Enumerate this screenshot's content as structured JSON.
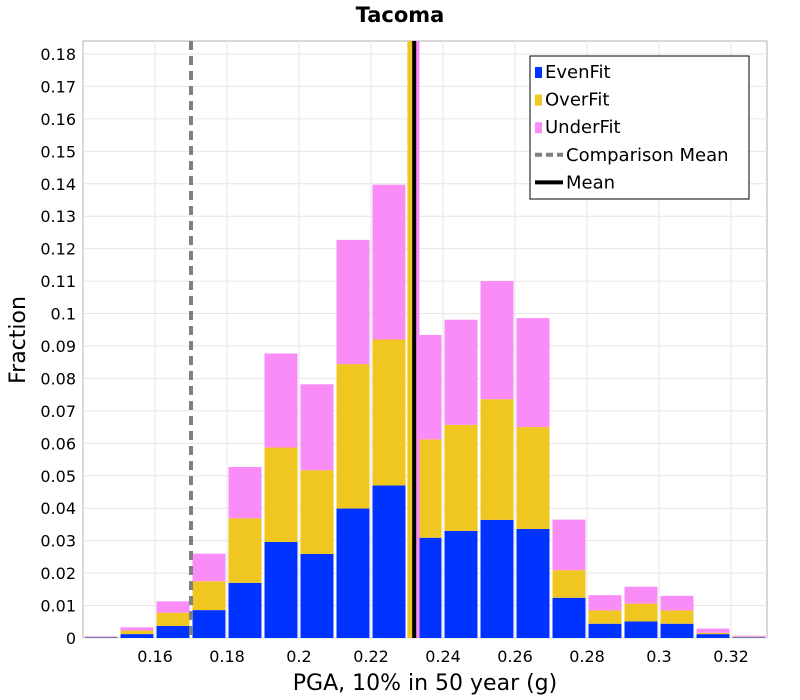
{
  "chart_data": {
    "type": "bar",
    "stacked": true,
    "title": "Tacoma",
    "xlabel": "PGA, 10% in 50 year (g)",
    "ylabel": "Fraction",
    "xlim": [
      0.14,
      0.33
    ],
    "ylim": [
      0,
      0.184
    ],
    "bin_width": 0.01,
    "x_ticks": [
      "0.16",
      "0.18",
      "0.2",
      "0.22",
      "0.24",
      "0.26",
      "0.28",
      "0.3",
      "0.32"
    ],
    "y_ticks": [
      "0",
      "0.01",
      "0.02",
      "0.03",
      "0.04",
      "0.05",
      "0.06",
      "0.07",
      "0.08",
      "0.09",
      "0.1",
      "0.11",
      "0.12",
      "0.13",
      "0.14",
      "0.15",
      "0.16",
      "0.17",
      "0.18"
    ],
    "bin_starts": [
      0.14,
      0.15,
      0.16,
      0.17,
      0.18,
      0.19,
      0.2,
      0.21,
      0.22,
      0.23,
      0.24,
      0.25,
      0.26,
      0.27,
      0.28,
      0.29,
      0.3,
      0.31,
      0.32
    ],
    "series": [
      {
        "name": "EvenFit",
        "color": "#0033ff",
        "values": [
          0.0002,
          0.0012,
          0.0037,
          0.0086,
          0.017,
          0.0296,
          0.0259,
          0.0399,
          0.047,
          0.0309,
          0.033,
          0.0364,
          0.0336,
          0.0124,
          0.0044,
          0.0051,
          0.0044,
          0.0012,
          0.0002
        ]
      },
      {
        "name": "OverFit",
        "color": "#f0c620",
        "values": [
          0.0002,
          0.0011,
          0.0041,
          0.0089,
          0.0199,
          0.0291,
          0.0258,
          0.0445,
          0.045,
          0.0303,
          0.0327,
          0.0372,
          0.0314,
          0.0085,
          0.0041,
          0.0055,
          0.0041,
          0.0004,
          0.0002
        ]
      },
      {
        "name": "UnderFit",
        "color": "#fa8cf8",
        "values": [
          0.0001,
          0.001,
          0.0035,
          0.0085,
          0.0158,
          0.029,
          0.0265,
          0.0383,
          0.0477,
          0.0322,
          0.0324,
          0.0364,
          0.0336,
          0.0156,
          0.0047,
          0.0052,
          0.0045,
          0.0013,
          0.0003
        ]
      }
    ],
    "reference_lines": [
      {
        "name": "Comparison Mean",
        "x": 0.17,
        "style": "dashed",
        "color": "#808080"
      },
      {
        "name": "Mean",
        "x": 0.232,
        "style": "solid",
        "color": "#000000"
      }
    ],
    "extra_mean_lines": [
      {
        "series": "OverFit",
        "x": 0.2308,
        "color": "#f0c620"
      },
      {
        "series": "UnderFit",
        "x": 0.2328,
        "color": "#fa8cf8"
      }
    ],
    "legend_position": "top-right",
    "legend": [
      {
        "label": "EvenFit",
        "kind": "box",
        "color": "#0033ff"
      },
      {
        "label": "OverFit",
        "kind": "box",
        "color": "#f0c620"
      },
      {
        "label": "UnderFit",
        "kind": "box",
        "color": "#fa8cf8"
      },
      {
        "label": "Comparison Mean",
        "kind": "dashed",
        "color": "#808080"
      },
      {
        "label": "Mean",
        "kind": "solid",
        "color": "#000000"
      }
    ],
    "grid": true
  }
}
